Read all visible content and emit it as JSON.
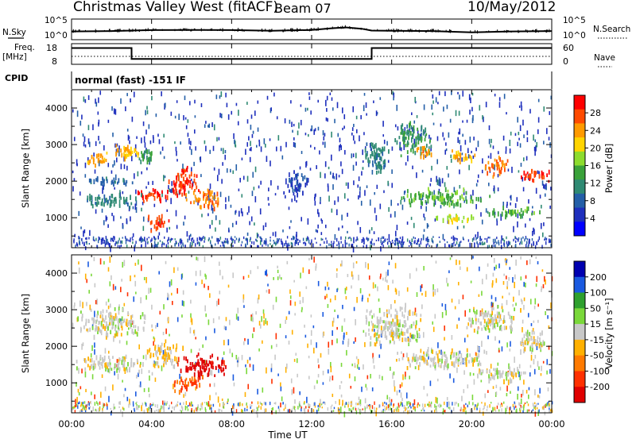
{
  "header": {
    "station": "Christmas Valley West (fitACF)",
    "beam": "Beam 07",
    "date": "10/May/2012"
  },
  "summary": {
    "nsky_label": "N.Sky",
    "nsearch_label": "N.Search",
    "n_ticks_left": [
      "10^5",
      "10^0"
    ],
    "n_ticks_right": [
      "10^5",
      "10^0"
    ],
    "freq_label": "Freq.",
    "freq_unit": "[MHz]",
    "freq_ticks": [
      "18",
      "8"
    ],
    "nave_label": "Nave",
    "nave_ticks": [
      "60",
      "0"
    ],
    "cpid_label": "CPID",
    "cpid_text": "normal (fast) -151 IF",
    "freq_segments": [
      {
        "t0": 0.0,
        "t1": 3.0,
        "mhz": 16.5
      },
      {
        "t0": 3.0,
        "t1": 15.0,
        "mhz": 10.5
      },
      {
        "t0": 15.0,
        "t1": 24.0,
        "mhz": 16.5
      }
    ]
  },
  "axes": {
    "x_ticks": [
      "00:00",
      "04:00",
      "08:00",
      "12:00",
      "16:00",
      "20:00",
      "00:00"
    ],
    "x_label": "Time UT",
    "y_label": "Slant Range [km]",
    "y_ticks": [
      "4000",
      "3000",
      "2000",
      "1000"
    ]
  },
  "colorbars": {
    "power": {
      "label": "Power [dB]",
      "ticks": [
        "28",
        "24",
        "20",
        "16",
        "12",
        "8",
        "4"
      ],
      "colors": [
        "#ff0000",
        "#ff4a00",
        "#ff9a00",
        "#ffd400",
        "#8ddc2e",
        "#3aa23a",
        "#2f8a73",
        "#245fa8",
        "#1e2fbd",
        "#0000ff"
      ]
    },
    "velocity": {
      "label": "Velocity [m s⁻¹]",
      "ticks": [
        "200",
        "100",
        "50",
        "15",
        "-15",
        "-50",
        "-100",
        "-200"
      ],
      "colors": [
        "#0000b0",
        "#1a5ae0",
        "#2ea02e",
        "#7ad83a",
        "#c8c8c8",
        "#ffb000",
        "#ff7a00",
        "#ff3000",
        "#e00000"
      ]
    }
  },
  "chart_data": [
    {
      "type": "line",
      "title": "N.Sky / N.Search",
      "x_unit": "hours UT",
      "xlim": [
        0,
        24
      ],
      "series": [
        {
          "name": "N.Sky",
          "x": [
            0,
            2,
            4,
            6,
            8,
            10,
            12,
            13,
            13.7,
            14.5,
            15,
            16,
            18,
            20,
            22,
            24
          ],
          "values": [
            0.55,
            0.6,
            0.7,
            0.72,
            0.7,
            0.62,
            0.72,
            0.9,
            1.0,
            0.85,
            0.65,
            0.62,
            0.6,
            0.45,
            0.55,
            0.6
          ]
        }
      ]
    },
    {
      "type": "line",
      "title": "Freq.",
      "xlim": [
        0,
        24
      ],
      "ylim": [
        8,
        18
      ],
      "x": [
        0,
        3,
        3,
        15,
        15,
        24
      ],
      "values": [
        16.5,
        16.5,
        10.5,
        10.5,
        16.5,
        16.5
      ]
    },
    {
      "type": "heatmap",
      "title": "Power",
      "xlim": [
        0,
        24
      ],
      "ylim": [
        180,
        4500
      ],
      "value_label": "Power [dB]",
      "vlim": [
        0,
        30
      ],
      "blobs": [
        {
          "t": 1.3,
          "r": 2600,
          "dt": 0.6,
          "dr": 250,
          "v": 22
        },
        {
          "t": 2.6,
          "r": 2850,
          "dt": 0.8,
          "dr": 250,
          "v": 21
        },
        {
          "t": 3.6,
          "r": 2700,
          "dt": 0.5,
          "dr": 300,
          "v": 12
        },
        {
          "t": 4.0,
          "r": 1650,
          "dt": 1.0,
          "dr": 180,
          "v": 27
        },
        {
          "t": 5.6,
          "r": 2000,
          "dt": 0.9,
          "dr": 450,
          "v": 27
        },
        {
          "t": 4.3,
          "r": 900,
          "dt": 0.6,
          "dr": 250,
          "v": 26
        },
        {
          "t": 6.6,
          "r": 1550,
          "dt": 1.0,
          "dr": 300,
          "v": 24
        },
        {
          "t": 2.0,
          "r": 1500,
          "dt": 1.6,
          "dr": 200,
          "v": 10
        },
        {
          "t": 1.8,
          "r": 2050,
          "dt": 1.4,
          "dr": 120,
          "v": 8
        },
        {
          "t": 11.2,
          "r": 2000,
          "dt": 0.7,
          "dr": 400,
          "v": 6
        },
        {
          "t": 15.2,
          "r": 2700,
          "dt": 0.8,
          "dr": 500,
          "v": 10
        },
        {
          "t": 17.0,
          "r": 3200,
          "dt": 1.0,
          "dr": 500,
          "v": 12
        },
        {
          "t": 17.6,
          "r": 2900,
          "dt": 0.5,
          "dr": 200,
          "v": 23
        },
        {
          "t": 18.5,
          "r": 1600,
          "dt": 2.5,
          "dr": 250,
          "v": 14
        },
        {
          "t": 19.5,
          "r": 2700,
          "dt": 0.7,
          "dr": 200,
          "v": 21
        },
        {
          "t": 21.2,
          "r": 2450,
          "dt": 0.6,
          "dr": 350,
          "v": 24
        },
        {
          "t": 23.0,
          "r": 2200,
          "dt": 0.9,
          "dr": 200,
          "v": 27
        },
        {
          "t": 22.0,
          "r": 1200,
          "dt": 1.5,
          "dr": 150,
          "v": 14
        },
        {
          "t": 19.0,
          "r": 1000,
          "dt": 1.2,
          "dr": 120,
          "v": 18
        }
      ]
    },
    {
      "type": "heatmap",
      "title": "Velocity",
      "xlim": [
        0,
        24
      ],
      "ylim": [
        180,
        4500
      ],
      "value_label": "Velocity [m s⁻¹]",
      "vlim": [
        -200,
        200
      ],
      "blobs": [
        {
          "t": 2.0,
          "r": 2700,
          "dt": 2.0,
          "dr": 400,
          "v": 0
        },
        {
          "t": 2.0,
          "r": 1550,
          "dt": 2.0,
          "dr": 250,
          "v": 0
        },
        {
          "t": 4.6,
          "r": 1800,
          "dt": 1.0,
          "dr": 400,
          "v": -20
        },
        {
          "t": 6.5,
          "r": 1500,
          "dt": 1.4,
          "dr": 350,
          "v": -180
        },
        {
          "t": 5.8,
          "r": 1000,
          "dt": 0.9,
          "dr": 250,
          "v": -100
        },
        {
          "t": 16.0,
          "r": 2600,
          "dt": 1.6,
          "dr": 600,
          "v": 0
        },
        {
          "t": 18.5,
          "r": 1700,
          "dt": 2.5,
          "dr": 300,
          "v": 0
        },
        {
          "t": 21.0,
          "r": 2800,
          "dt": 1.5,
          "dr": 400,
          "v": 0
        },
        {
          "t": 23.0,
          "r": 2200,
          "dt": 1.0,
          "dr": 300,
          "v": 0
        },
        {
          "t": 21.5,
          "r": 1250,
          "dt": 1.5,
          "dr": 200,
          "v": 0
        }
      ]
    }
  ]
}
